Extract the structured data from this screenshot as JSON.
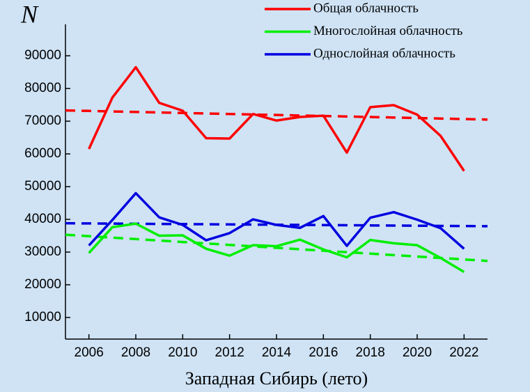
{
  "chart_data": {
    "type": "line",
    "x_label": "Западная Сибирь (лето)",
    "y_label": "N",
    "x": [
      2006,
      2007,
      2008,
      2009,
      2010,
      2011,
      2012,
      2013,
      2014,
      2015,
      2016,
      2017,
      2018,
      2019,
      2020,
      2021,
      2022
    ],
    "series": [
      {
        "name": "Общая облачность",
        "color": "#ff0000",
        "values": [
          61500,
          77200,
          86500,
          75600,
          73200,
          64800,
          64700,
          72200,
          70200,
          71300,
          71700,
          60400,
          74300,
          74900,
          72000,
          65500,
          54800
        ]
      },
      {
        "name": "Многослойная облачность",
        "color": "#00ee00",
        "values": [
          29700,
          37600,
          38700,
          35000,
          35100,
          31000,
          28900,
          32100,
          31800,
          33800,
          30800,
          28400,
          33700,
          32700,
          32100,
          28200,
          23900
        ]
      },
      {
        "name": "Однослойная облачность",
        "color": "#0000e0",
        "values": [
          32000,
          39800,
          48000,
          40600,
          38300,
          33600,
          35800,
          40000,
          38300,
          37400,
          41000,
          31900,
          40500,
          42200,
          39900,
          37300,
          31000
        ]
      }
    ],
    "trends": [
      {
        "color": "#ff0000",
        "x": [
          2005,
          2023
        ],
        "values": [
          73300,
          70500
        ]
      },
      {
        "color": "#00ee00",
        "x": [
          2005,
          2023
        ],
        "values": [
          35300,
          27300
        ]
      },
      {
        "color": "#0000e0",
        "x": [
          2005,
          2023
        ],
        "values": [
          38800,
          37900
        ]
      }
    ],
    "xlim": [
      2005,
      2023
    ],
    "xticks": [
      2006,
      2008,
      2010,
      2012,
      2014,
      2016,
      2018,
      2020,
      2022
    ],
    "ylim": [
      3400,
      99600
    ],
    "yticks": [
      10000,
      20000,
      30000,
      40000,
      50000,
      60000,
      70000,
      80000,
      90000
    ],
    "legend": "top-right"
  }
}
